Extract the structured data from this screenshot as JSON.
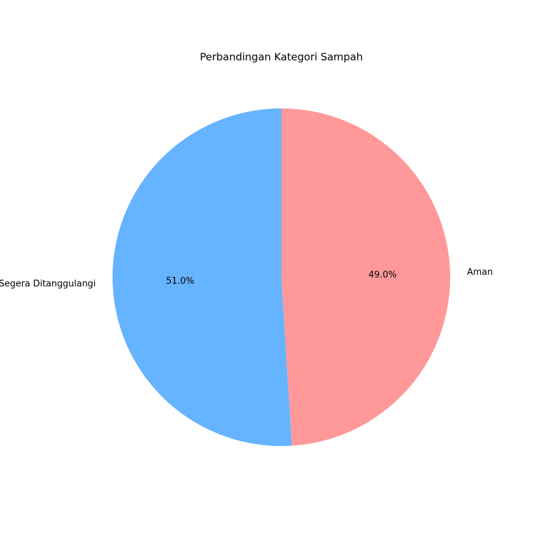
{
  "chart_data": {
    "type": "pie",
    "title": "Perbandingan Kategori Sampah",
    "categories": [
      "Segera Ditanggulangi",
      "Aman"
    ],
    "values": [
      51.0,
      49.0
    ],
    "percent_labels": [
      "51.0%",
      "49.0%"
    ],
    "colors": [
      "#66b3ff",
      "#ff9999"
    ]
  }
}
